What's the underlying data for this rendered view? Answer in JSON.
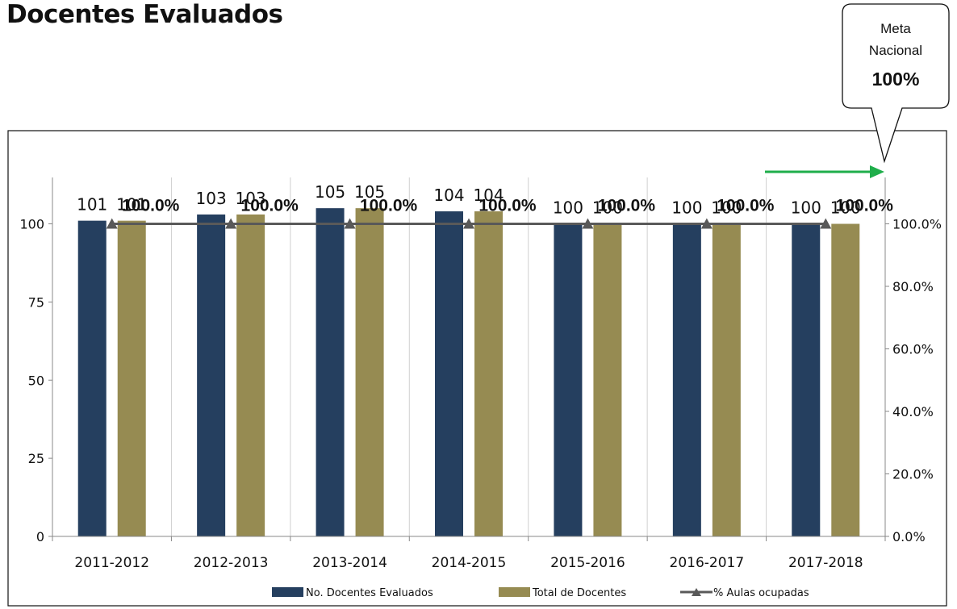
{
  "page": {
    "title": "Docentes Evaluados"
  },
  "callout": {
    "line1": "Meta",
    "line2": "Nacional",
    "value": "100%"
  },
  "colors": {
    "evaluated": "#253f5f",
    "total": "#968b52",
    "line": "#595959",
    "arrow": "#1fae4b",
    "grid": "#d0d0d0"
  },
  "chart_data": {
    "type": "bar",
    "title": "",
    "categories": [
      "2011-2012",
      "2012-2013",
      "2013-2014",
      "2014-2015",
      "2015-2016",
      "2016-2017",
      "2017-2018"
    ],
    "series": [
      {
        "name": "No. Docentes Evaluados",
        "type": "bar",
        "axis": "left",
        "values": [
          101,
          103,
          105,
          104,
          100,
          100,
          100
        ]
      },
      {
        "name": "Total de Docentes",
        "type": "bar",
        "axis": "left",
        "values": [
          101,
          103,
          105,
          104,
          100,
          100,
          100
        ]
      },
      {
        "name": "% Aulas ocupadas",
        "type": "line",
        "marker": "triangle",
        "axis": "right",
        "values": [
          100.0,
          100.0,
          100.0,
          100.0,
          100.0,
          100.0,
          100.0
        ]
      }
    ],
    "data_labels": {
      "bars": [
        "101",
        "101",
        "103",
        "103",
        "105",
        "105",
        "104",
        "104",
        "100",
        "100",
        "100",
        "100",
        "100",
        "100"
      ],
      "line": [
        "100.0%",
        "100.0%",
        "100.0%",
        "100.0%",
        "100.0%",
        "100.0%",
        "100.0%"
      ]
    },
    "left_axis": {
      "min": 0,
      "max": 120,
      "ticks": [
        0,
        25,
        50,
        75,
        100
      ],
      "tick_labels": [
        "0",
        "25",
        "50",
        "75",
        "100"
      ]
    },
    "right_axis": {
      "min": 0,
      "max": 120,
      "ticks": [
        0,
        20,
        40,
        60,
        80,
        100
      ],
      "tick_labels": [
        "0.0%",
        "20.0%",
        "40.0%",
        "60.0%",
        "80.0%",
        "100.0%"
      ]
    },
    "grid": "vertical category separators",
    "legend": {
      "position": "bottom",
      "labels": [
        "No. Docentes Evaluados",
        "Total de Docentes",
        "% Aulas ocupadas"
      ]
    }
  }
}
